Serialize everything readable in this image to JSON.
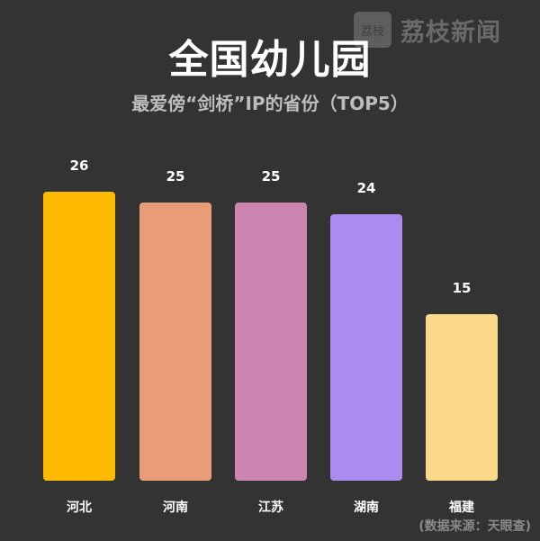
{
  "watermark": {
    "icon_text": "荔枝",
    "name": "荔枝新闻"
  },
  "header": {
    "title": "全国幼儿园",
    "subtitle": "最爱傍“剑桥”IP的省份（TOP5）"
  },
  "source": "(数据来源：天眼查)",
  "chart_data": {
    "type": "bar",
    "title": "全国幼儿园",
    "subtitle": "最爱傍“剑桥”IP的省份（TOP5）",
    "categories": [
      "河北",
      "河南",
      "江苏",
      "湖南",
      "福建"
    ],
    "values": [
      26,
      25,
      25,
      24,
      15
    ],
    "value_labels": [
      "26",
      "25",
      "25",
      "24",
      "15"
    ],
    "colors": [
      "#ffb900",
      "#e89c78",
      "#cc85b0",
      "#aa8cf0",
      "#fad98a"
    ],
    "xlabel": "",
    "ylabel": "",
    "grid": false,
    "legend": "none",
    "source": "(数据来源：天眼查)"
  }
}
